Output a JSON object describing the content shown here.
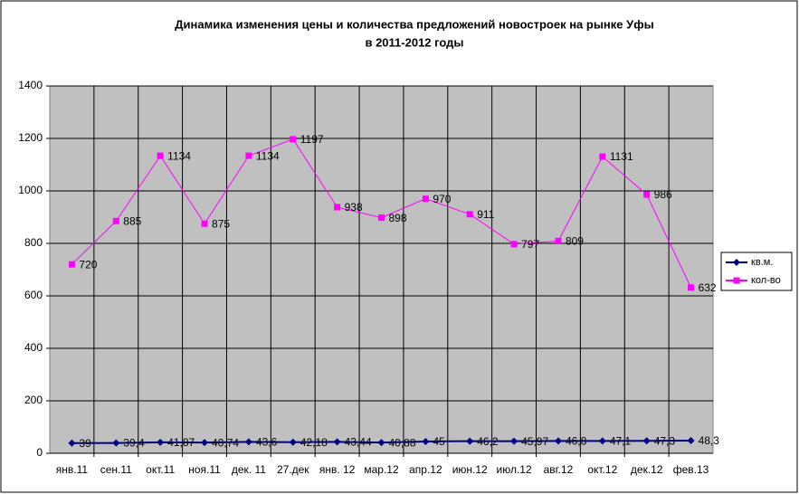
{
  "chart_data": {
    "type": "line",
    "title": "Динамика изменения цены и количества предложений новостроек на рынке Уфы",
    "subtitle": "в 2011-2012 годы",
    "categories": [
      "янв.11",
      "сен.11",
      "окт.11",
      "ноя.11",
      "дек. 11",
      "27.дек",
      "янв. 12",
      "мар.12",
      "апр.12",
      "июн.12",
      "июл.12",
      "авг.12",
      "окт.12",
      "дек.12",
      "фев.13"
    ],
    "series": [
      {
        "name": "кв.м.",
        "color": "#000080",
        "marker": "diamond",
        "values": [
          39,
          39.4,
          41.87,
          40.74,
          43.6,
          42.18,
          43.44,
          40.88,
          45,
          46.2,
          45.97,
          46.8,
          47.1,
          47.3,
          48.3
        ],
        "value_labels": [
          "39",
          "39,4",
          "41,87",
          "40,74",
          "43,6",
          "42,18",
          "43,44",
          "40,88",
          "45",
          "46,2",
          "45,97",
          "46,8",
          "47,1",
          "47,3",
          "48,3"
        ]
      },
      {
        "name": "кол-во",
        "color": "#ff00ff",
        "marker": "square",
        "values": [
          720,
          885,
          1134,
          875,
          1134,
          1197,
          938,
          898,
          970,
          911,
          797,
          809,
          1131,
          986,
          632
        ]
      }
    ],
    "ylim": [
      0,
      1400
    ],
    "yticks": [
      0,
      200,
      400,
      600,
      800,
      1000,
      1200,
      1400
    ],
    "grid": true,
    "legend": "right"
  }
}
